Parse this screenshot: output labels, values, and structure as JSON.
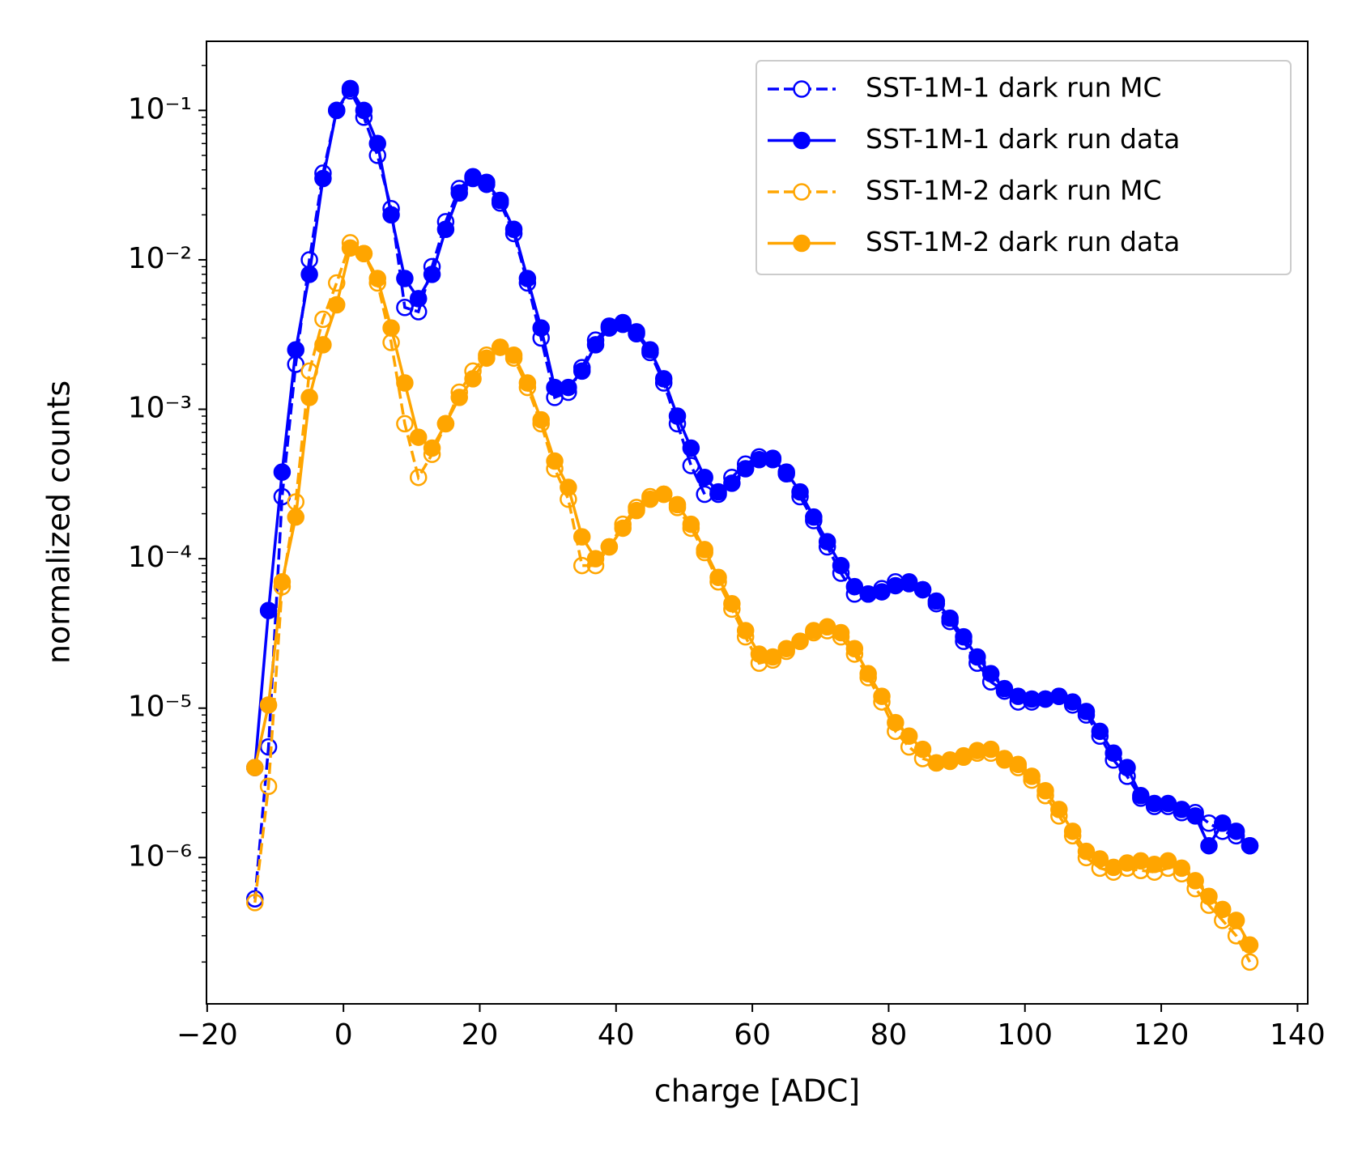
{
  "chart_data": {
    "type": "line",
    "xlabel": "charge [ADC]",
    "ylabel": "normalized counts",
    "yscale": "log",
    "legend": "upper right",
    "xlim": [
      -20.1,
      141.5
    ],
    "ylim": [
      1.05e-07,
      0.29
    ],
    "xticks": [
      {
        "value": -20,
        "label": "−20"
      },
      0,
      20,
      40,
      60,
      80,
      100,
      120,
      140
    ],
    "yticks": [
      {
        "value": 1e-06,
        "label": "10⁻⁶"
      },
      {
        "value": 1e-05,
        "label": "10⁻⁵"
      },
      {
        "value": 0.0001,
        "label": "10⁻⁴"
      },
      {
        "value": 0.001,
        "label": "10⁻³"
      },
      {
        "value": 0.01,
        "label": "10⁻²"
      },
      {
        "value": 0.1,
        "label": "10⁻¹"
      }
    ],
    "x": [
      -13,
      -11,
      -9,
      -7,
      -5,
      -3,
      -1,
      1,
      3,
      5,
      7,
      9,
      11,
      13,
      15,
      17,
      19,
      21,
      23,
      25,
      27,
      29,
      31,
      33,
      35,
      37,
      39,
      41,
      43,
      45,
      47,
      49,
      51,
      53,
      55,
      57,
      59,
      61,
      63,
      65,
      67,
      69,
      71,
      73,
      75,
      77,
      79,
      81,
      83,
      85,
      87,
      89,
      91,
      93,
      95,
      97,
      99,
      101,
      103,
      105,
      107,
      109,
      111,
      113,
      115,
      117,
      119,
      121,
      123,
      125,
      127,
      129,
      131,
      133
    ],
    "series": [
      {
        "name": "SST-1M-1 dark run MC",
        "color": "#0000ff",
        "linestyle": "dashed",
        "marker": "open",
        "values": [
          5.3e-07,
          5.5e-06,
          0.00026,
          0.002,
          0.01,
          0.038,
          0.1,
          0.135,
          0.09,
          0.05,
          0.022,
          0.0048,
          0.0045,
          0.009,
          0.018,
          0.03,
          0.036,
          0.032,
          0.024,
          0.015,
          0.007,
          0.003,
          0.0012,
          0.0013,
          0.0019,
          0.0029,
          0.0036,
          0.0037,
          0.0032,
          0.0024,
          0.0015,
          0.0008,
          0.00042,
          0.00027,
          0.00027,
          0.00035,
          0.00043,
          0.00048,
          0.00047,
          0.00037,
          0.00026,
          0.00018,
          0.00012,
          8e-05,
          5.8e-05,
          5.8e-05,
          6.3e-05,
          7e-05,
          7e-05,
          6.2e-05,
          5e-05,
          3.8e-05,
          2.8e-05,
          2e-05,
          1.5e-05,
          1.3e-05,
          1.1e-05,
          1.1e-05,
          1.15e-05,
          1.2e-05,
          1.05e-05,
          9e-06,
          6.5e-06,
          4.5e-06,
          3.5e-06,
          2.5e-06,
          2.2e-06,
          2.2e-06,
          2e-06,
          2e-06,
          1.7e-06,
          1.5e-06,
          1.4e-06,
          1.2e-06
        ]
      },
      {
        "name": "SST-1M-1 dark run data",
        "color": "#0000ff",
        "linestyle": "solid",
        "marker": "filled",
        "values": [
          4e-06,
          4.5e-05,
          0.00038,
          0.0025,
          0.008,
          0.035,
          0.1,
          0.14,
          0.1,
          0.06,
          0.02,
          0.0075,
          0.0055,
          0.008,
          0.016,
          0.028,
          0.035,
          0.033,
          0.025,
          0.016,
          0.0075,
          0.0035,
          0.0014,
          0.0014,
          0.0018,
          0.0027,
          0.0035,
          0.0038,
          0.0033,
          0.0025,
          0.0016,
          0.0009,
          0.00055,
          0.00035,
          0.00028,
          0.00032,
          0.0004,
          0.00046,
          0.00046,
          0.00038,
          0.00028,
          0.00019,
          0.00013,
          9e-05,
          6.5e-05,
          5.8e-05,
          6e-05,
          6.6e-05,
          6.8e-05,
          6.2e-05,
          5.2e-05,
          4e-05,
          3e-05,
          2.2e-05,
          1.7e-05,
          1.35e-05,
          1.2e-05,
          1.15e-05,
          1.15e-05,
          1.2e-05,
          1.1e-05,
          9.5e-06,
          7e-06,
          5e-06,
          4e-06,
          2.6e-06,
          2.3e-06,
          2.3e-06,
          2.1e-06,
          1.9e-06,
          1.2e-06,
          1.7e-06,
          1.5e-06,
          1.2e-06
        ]
      },
      {
        "name": "SST-1M-2 dark run MC",
        "color": "#ffa500",
        "linestyle": "dashed",
        "marker": "open",
        "values": [
          5e-07,
          3e-06,
          6.5e-05,
          0.00024,
          0.0018,
          0.004,
          0.007,
          0.013,
          0.011,
          0.007,
          0.0028,
          0.0008,
          0.00035,
          0.0005,
          0.0008,
          0.0013,
          0.0018,
          0.0023,
          0.0026,
          0.0022,
          0.0014,
          0.0008,
          0.0004,
          0.00025,
          9e-05,
          9e-05,
          0.00012,
          0.00017,
          0.00022,
          0.00026,
          0.00027,
          0.00022,
          0.00016,
          0.00011,
          7e-05,
          4.6e-05,
          3e-05,
          2e-05,
          2.1e-05,
          2.4e-05,
          2.8e-05,
          3.2e-05,
          3.3e-05,
          3e-05,
          2.3e-05,
          1.6e-05,
          1.1e-05,
          7e-06,
          5.5e-06,
          4.6e-06,
          4.3e-06,
          4.4e-06,
          4.7e-06,
          5e-06,
          5e-06,
          4.5e-06,
          4e-06,
          3.3e-06,
          2.6e-06,
          1.9e-06,
          1.4e-06,
          1e-06,
          8.5e-07,
          8e-07,
          8.5e-07,
          8.2e-07,
          8e-07,
          8.5e-07,
          7.8e-07,
          6.2e-07,
          4.8e-07,
          3.8e-07,
          3e-07,
          2e-07
        ]
      },
      {
        "name": "SST-1M-2 dark run data",
        "color": "#ffa500",
        "linestyle": "solid",
        "marker": "filled",
        "values": [
          4e-06,
          1.05e-05,
          7e-05,
          0.00019,
          0.0012,
          0.0027,
          0.005,
          0.012,
          0.011,
          0.0075,
          0.0035,
          0.0015,
          0.00065,
          0.00055,
          0.0008,
          0.0012,
          0.0016,
          0.0022,
          0.0026,
          0.0023,
          0.0015,
          0.00085,
          0.00045,
          0.0003,
          0.00014,
          0.0001,
          0.00012,
          0.00016,
          0.00021,
          0.00025,
          0.00027,
          0.00023,
          0.00017,
          0.000115,
          7.5e-05,
          5e-05,
          3.3e-05,
          2.3e-05,
          2.2e-05,
          2.5e-05,
          2.8e-05,
          3.3e-05,
          3.5e-05,
          3.2e-05,
          2.5e-05,
          1.7e-05,
          1.2e-05,
          8e-06,
          6.5e-06,
          5.3e-06,
          4.3e-06,
          4.5e-06,
          4.8e-06,
          5.2e-06,
          5.3e-06,
          4.6e-06,
          4.2e-06,
          3.5e-06,
          2.8e-06,
          2.1e-06,
          1.5e-06,
          1.1e-06,
          9.8e-07,
          8.6e-07,
          9.2e-07,
          9.5e-07,
          9e-07,
          9.5e-07,
          8.5e-07,
          7e-07,
          5.5e-07,
          4.5e-07,
          3.8e-07,
          2.6e-07
        ]
      }
    ]
  }
}
